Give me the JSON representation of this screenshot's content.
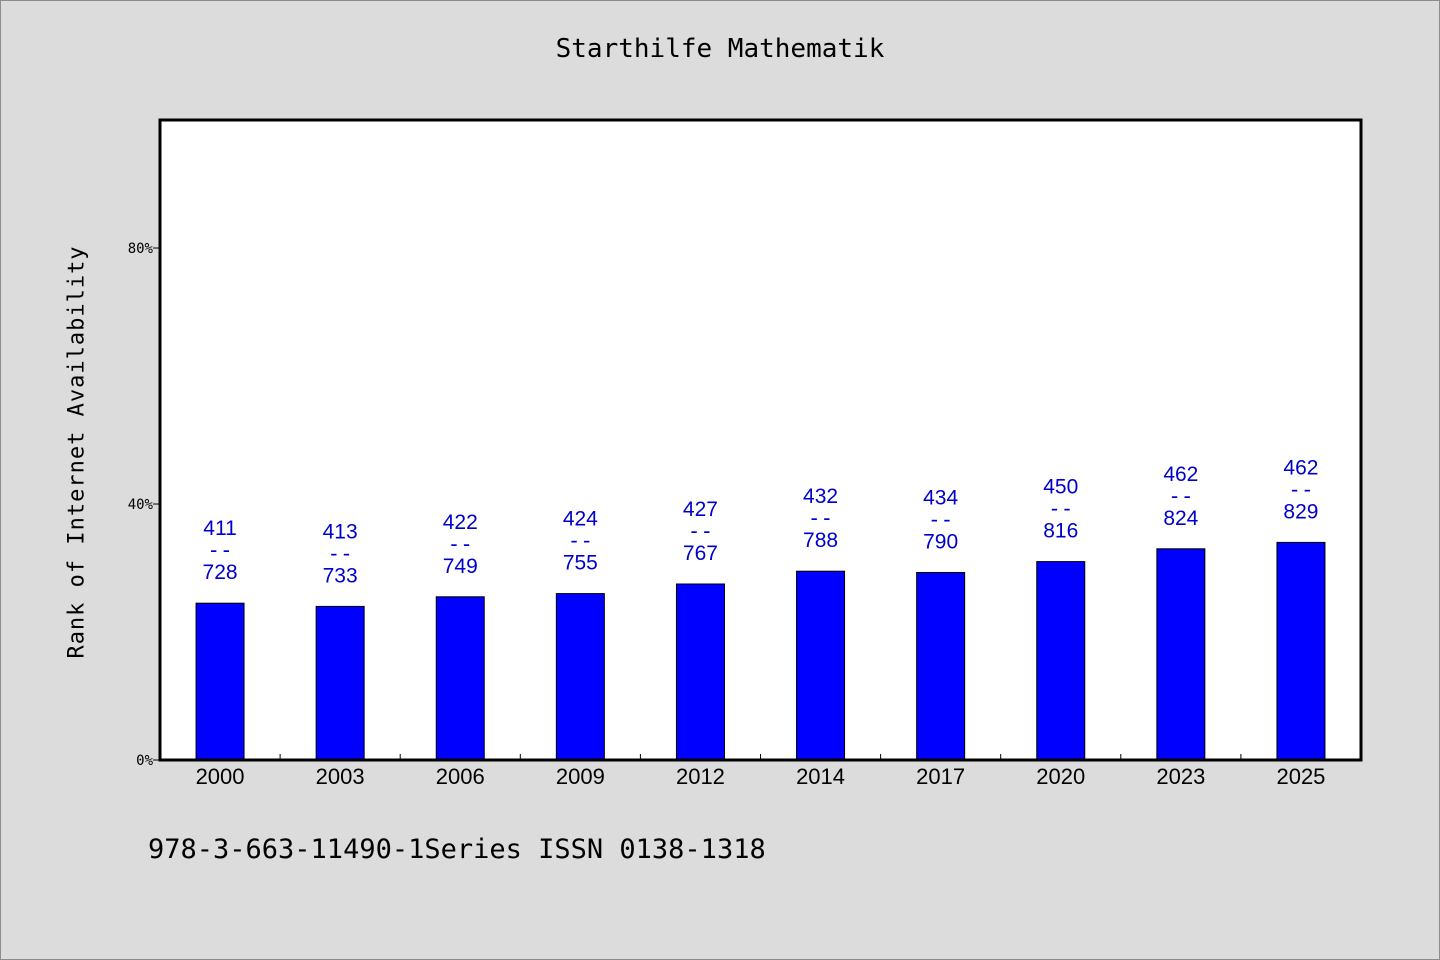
{
  "chart_data": {
    "type": "bar",
    "title": "Starthilfe Mathematik",
    "xlabel": "",
    "ylabel": "Rank of Internet Availability",
    "categories": [
      "2000",
      "2003",
      "2006",
      "2009",
      "2012",
      "2014",
      "2017",
      "2020",
      "2023",
      "2025"
    ],
    "series": [
      {
        "values": [
          24.5,
          24.0,
          25.5,
          26.0,
          27.5,
          29.5,
          29.3,
          31.0,
          33.0,
          34.0
        ],
        "labels_top": [
          "411",
          "413",
          "422",
          "424",
          "427",
          "432",
          "434",
          "450",
          "462",
          "462"
        ],
        "labels_bottom": [
          "728",
          "733",
          "749",
          "755",
          "767",
          "788",
          "790",
          "816",
          "824",
          "829"
        ]
      }
    ],
    "label_separator": "--",
    "ylim": [
      0,
      100
    ],
    "yticks": [
      0,
      40,
      80
    ],
    "ytick_labels": [
      "0%",
      "40%",
      "80%"
    ],
    "grid": false,
    "bar_color": "#0000ff",
    "label_color": "#0000cc"
  },
  "footer": "978-3-663-11490-1Series ISSN 0138-1318"
}
